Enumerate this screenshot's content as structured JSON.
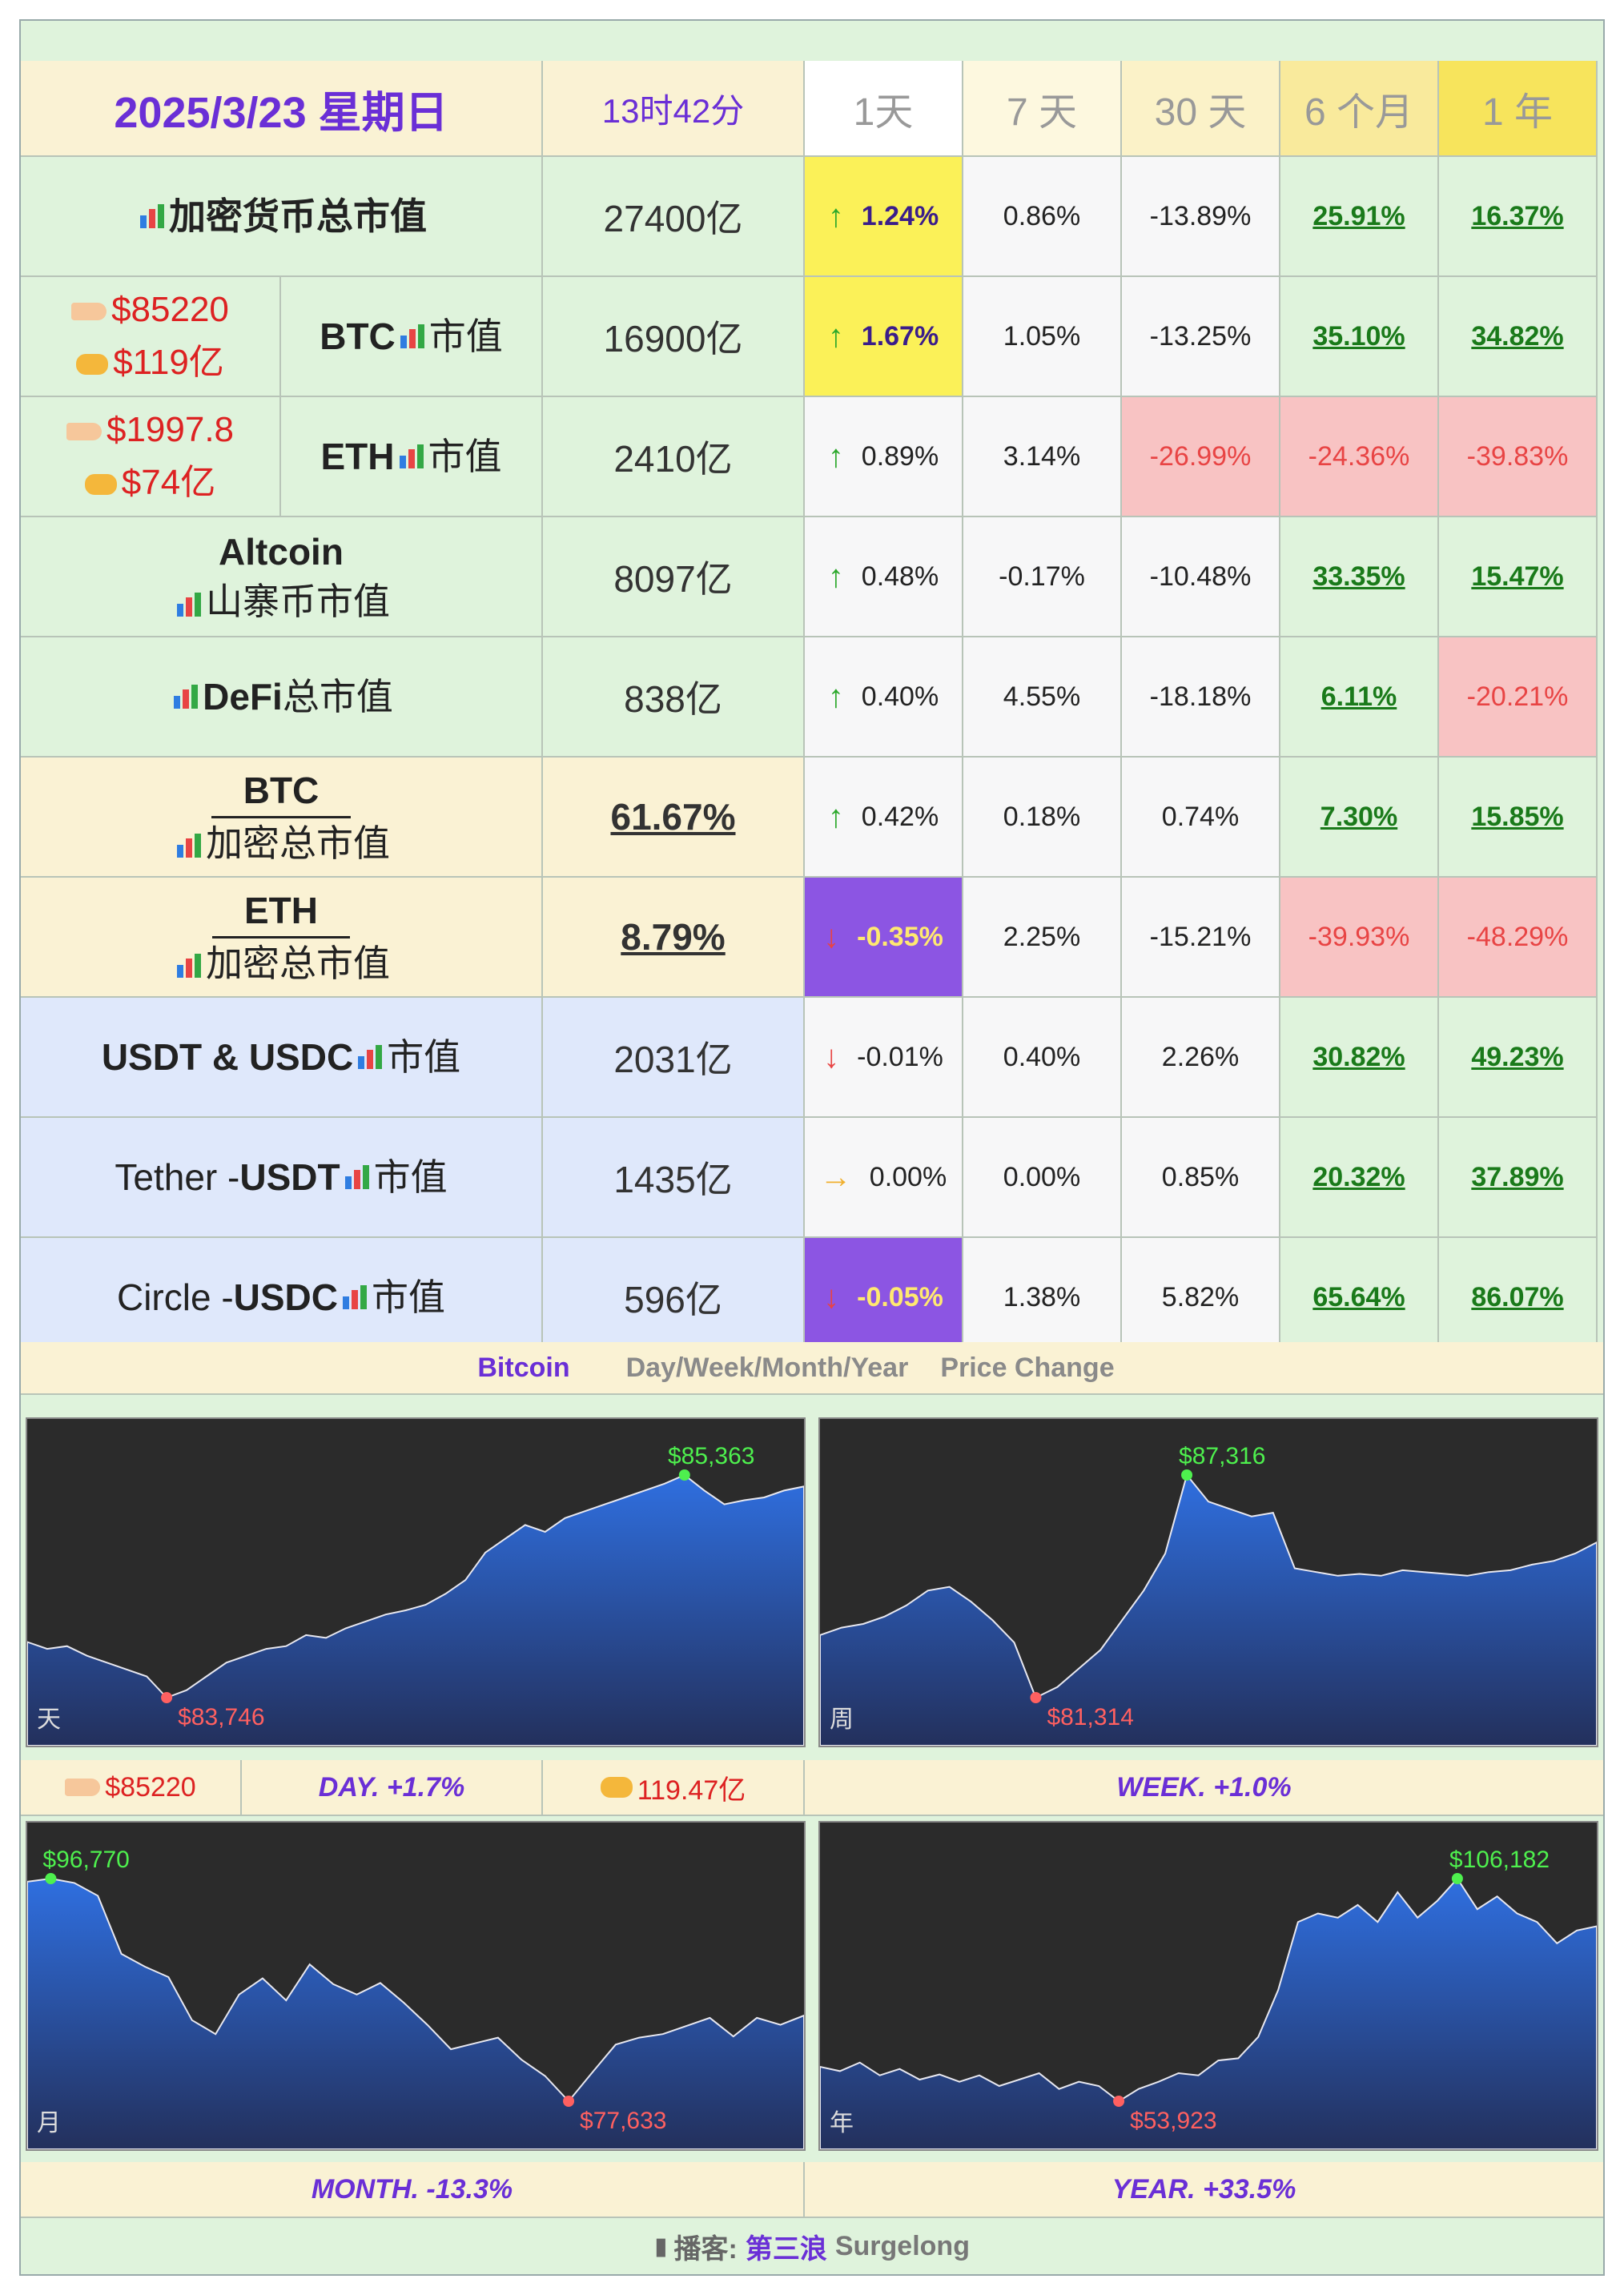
{
  "header": {
    "date": "2025/3/23 星期日",
    "time": "13时42分",
    "periods": [
      "1天",
      "7 天",
      "30 天",
      "6 个月",
      "1 年"
    ]
  },
  "rows": {
    "total": {
      "label": "加密货币总市值",
      "value": "27400亿",
      "d1": "1.24%",
      "d7": "0.86%",
      "d30": "-13.89%",
      "m6": "25.91%",
      "y1": "16.37%"
    },
    "btc": {
      "price": "$85220",
      "volume": "$119亿",
      "label_bold": "BTC",
      "label_rest": "市值",
      "value": "16900亿",
      "d1": "1.67%",
      "d7": "1.05%",
      "d30": "-13.25%",
      "m6": "35.10%",
      "y1": "34.82%"
    },
    "eth": {
      "price": "$1997.8",
      "volume": "$74亿",
      "label_bold": "ETH",
      "label_rest": "市值",
      "value": "2410亿",
      "d1": "0.89%",
      "d7": "3.14%",
      "d30": "-26.99%",
      "m6": "-24.36%",
      "y1": "-39.83%"
    },
    "alt": {
      "label1": "Altcoin",
      "label2": "山寨币市值",
      "value": "8097亿",
      "d1": "0.48%",
      "d7": "-0.17%",
      "d30": "-10.48%",
      "m6": "33.35%",
      "y1": "15.47%"
    },
    "defi": {
      "label_bold": "DeFi",
      "label_rest": "总市值",
      "value": "838亿",
      "d1": "0.40%",
      "d7": "4.55%",
      "d30": "-18.18%",
      "m6": "6.11%",
      "y1": "-20.21%"
    },
    "btcdom": {
      "label1": "BTC",
      "label2": "加密总市值",
      "value": "61.67%",
      "d1": "0.42%",
      "d7": "0.18%",
      "d30": "0.74%",
      "m6": "7.30%",
      "y1": "15.85%"
    },
    "ethdom": {
      "label1": "ETH",
      "label2": "加密总市值",
      "value": "8.79%",
      "d1": "-0.35%",
      "d7": "2.25%",
      "d30": "-15.21%",
      "m6": "-39.93%",
      "y1": "-48.29%"
    },
    "stable": {
      "label_bold": "USDT & USDC",
      "label_rest": "市值",
      "value": "2031亿",
      "d1": "-0.01%",
      "d7": "0.40%",
      "d30": "2.26%",
      "m6": "30.82%",
      "y1": "49.23%"
    },
    "usdt": {
      "label_pre": "Tether - ",
      "label_bold": "USDT",
      "label_rest": "市值",
      "value": "1435亿",
      "d1": "0.00%",
      "d7": "0.00%",
      "d30": "0.85%",
      "m6": "20.32%",
      "y1": "37.89%"
    },
    "usdc": {
      "label_pre": "Circle - ",
      "label_bold": "USDC",
      "label_rest": "市值",
      "value": "596亿",
      "d1": "-0.05%",
      "d7": "1.38%",
      "d30": "5.82%",
      "m6": "65.64%",
      "y1": "86.07%"
    }
  },
  "bitcoin_bar": {
    "title": "Bitcoin",
    "periods": "Day/Week/Month/Year",
    "label": "Price Change"
  },
  "charts": {
    "day": {
      "corner": "天",
      "high": "$85,363",
      "low": "$83,746"
    },
    "week": {
      "corner": "周",
      "high": "$87,316",
      "low": "$81,314"
    },
    "month": {
      "corner": "月",
      "high": "$96,770",
      "low": "$77,633"
    },
    "year": {
      "corner": "年",
      "high": "$106,182",
      "low": "$53,923"
    }
  },
  "captions": {
    "price": "$85220",
    "day": "DAY.   +1.7%",
    "volume": "119.47亿",
    "week": "WEEK.   +1.0%",
    "month": "MONTH.   -13.3%",
    "year": "YEAR.   +33.5%"
  },
  "footer": {
    "prefix": "播客:",
    "name": "第三浪",
    "brand": "Surgelong"
  },
  "colors": {
    "green": "#1a7a1a",
    "red": "#e84444",
    "purple": "#6a2fd6",
    "yellow": "#fbf158"
  },
  "chart_data": [
    {
      "type": "area",
      "title": "天",
      "high": 85363,
      "low": 83746,
      "y": [
        84150,
        84100,
        84120,
        84050,
        84000,
        83950,
        83900,
        83746,
        83800,
        83900,
        84000,
        84050,
        84100,
        84120,
        84200,
        84180,
        84250,
        84300,
        84350,
        84380,
        84420,
        84500,
        84600,
        84800,
        84900,
        85000,
        84950,
        85050,
        85100,
        85150,
        85200,
        85250,
        85300,
        85363,
        85250,
        85150,
        85180,
        85200,
        85250,
        85280
      ]
    },
    {
      "type": "area",
      "title": "周",
      "high": 87316,
      "low": 81314,
      "y": [
        83000,
        83200,
        83300,
        83500,
        83800,
        84200,
        84300,
        83900,
        83400,
        82800,
        81314,
        81600,
        82100,
        82600,
        83400,
        84200,
        85200,
        87316,
        86600,
        86400,
        86200,
        86300,
        84800,
        84700,
        84600,
        84650,
        84600,
        84750,
        84700,
        84650,
        84600,
        84700,
        84750,
        84900,
        85000,
        85200,
        85500
      ]
    },
    {
      "type": "area",
      "title": "月",
      "high": 96770,
      "low": 77633,
      "y": [
        96500,
        96770,
        96400,
        95300,
        90300,
        89200,
        88300,
        84600,
        83400,
        86800,
        88200,
        86300,
        89400,
        87700,
        86800,
        87800,
        86100,
        84200,
        82100,
        82600,
        83100,
        81200,
        79800,
        77633,
        80100,
        82500,
        83100,
        83400,
        84100,
        84800,
        83200,
        84800,
        84200,
        85000
      ]
    },
    {
      "type": "area",
      "title": "年",
      "high": 106182,
      "low": 53923,
      "y": [
        62000,
        61000,
        63000,
        60000,
        61500,
        59000,
        60200,
        58500,
        60000,
        57500,
        59000,
        60500,
        56800,
        58500,
        57500,
        53923,
        56800,
        58500,
        60500,
        60000,
        63500,
        64000,
        69000,
        80000,
        96000,
        98000,
        97000,
        100000,
        96000,
        103000,
        97000,
        101000,
        106182,
        99000,
        102000,
        98000,
        96000,
        91000,
        94000,
        95000
      ]
    }
  ]
}
